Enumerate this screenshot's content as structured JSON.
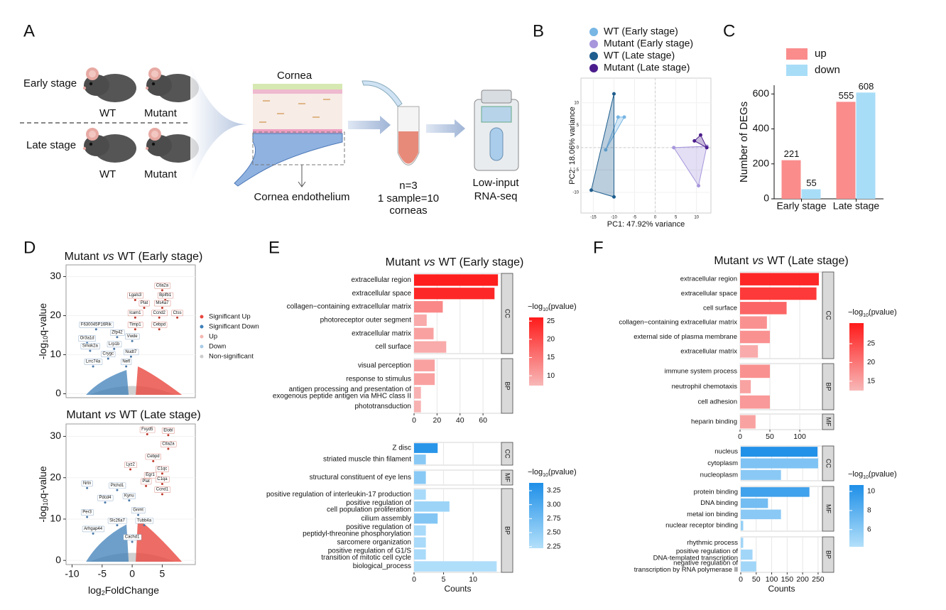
{
  "panel_labels": [
    "A",
    "B",
    "C",
    "D",
    "E",
    "F"
  ],
  "schematic": {
    "stages": [
      "Early stage",
      "Late stage"
    ],
    "genotypes": [
      "WT",
      "Mutant"
    ],
    "tissue": "Cornea",
    "cell_layer": "Cornea endothelium",
    "sample_lines": [
      "n=3",
      "1 sample=10",
      "corneas"
    ],
    "method_lines": [
      "Low-input",
      "RNA-seq"
    ]
  },
  "chart_data": [
    {
      "type": "scatter",
      "xlabel": "PC1: 47.92% variance",
      "ylabel": "PC2: 18.06% variance",
      "xlim": [
        -18,
        13.5
      ],
      "ylim": [
        -14.6,
        15.5
      ],
      "xticks": [
        -15,
        -10,
        -5,
        0,
        5,
        10
      ],
      "yticks": [
        -10,
        -5,
        0,
        5,
        10
      ],
      "series": [
        {
          "name": "WT (Early stage)",
          "color": "#78b6e4",
          "x": [
            -12,
            -9,
            -7.5
          ],
          "y": [
            -0.5,
            6.8,
            6.8
          ]
        },
        {
          "name": "Mutant (Early stage)",
          "color": "#a796dc",
          "x": [
            4.5,
            12.5,
            10.5
          ],
          "y": [
            0,
            0.3,
            -8.5
          ]
        },
        {
          "name": "WT (Late stage)",
          "color": "#1f5e8e",
          "x": [
            -10,
            -15.5,
            -10
          ],
          "y": [
            12,
            -9.5,
            -11
          ]
        },
        {
          "name": "Mutant (Late stage)",
          "color": "#4b1d8c",
          "x": [
            9.5,
            11,
            12.5
          ],
          "y": [
            1.5,
            2.8,
            0
          ]
        }
      ]
    },
    {
      "type": "bar",
      "ylabel": "Number of DEGs",
      "categories": [
        "Early stage",
        "Late stage"
      ],
      "ylim": [
        0,
        650
      ],
      "yticks": [
        0,
        200,
        400,
        600
      ],
      "series": [
        {
          "name": "up",
          "color": "#fa8c8c",
          "values": [
            221,
            555
          ]
        },
        {
          "name": "down",
          "color": "#a8ddf7",
          "values": [
            55,
            608
          ]
        }
      ]
    },
    {
      "type": "volcano",
      "title": [
        "Mutant",
        "vs",
        "WT (Early stage)"
      ],
      "ylabel": [
        "-log",
        "10",
        "q-value"
      ],
      "xlim": [
        -11,
        10.5
      ],
      "ylim": [
        -1,
        33
      ],
      "yticks": [
        0,
        10,
        20,
        30
      ],
      "legend": {
        "names": [
          "Significant Up",
          "Significant Down",
          "Up",
          "Down",
          "Non-significant"
        ],
        "colors": [
          "#e8473f",
          "#3d7fb8",
          "#f4b6b0",
          "#a9cbe6",
          "#cccccc"
        ]
      },
      "labeled_up": {
        "color": "#c0392b",
        "labels": [
          "Ctla2a",
          "Bpifb1",
          "Lgals3",
          "Ms4a7",
          "Plat",
          "Ctss",
          "Ccnd2",
          "Icam1",
          "Timp1",
          "Cebpd"
        ],
        "x": [
          5,
          5.5,
          0.5,
          5,
          2,
          7.5,
          4.5,
          0.5,
          0.5,
          4.5
        ],
        "y": [
          26.5,
          24,
          24,
          22,
          22,
          19.5,
          19.5,
          19.5,
          16.5,
          16.5
        ]
      },
      "labeled_down": {
        "color": "#4a78a8",
        "labels": [
          "F630045P16Rik",
          "Zfp42",
          "Or3a1d",
          "Vwde",
          "Smok2a",
          "Lrp1b",
          "Nudt7",
          "Crygc",
          "Lrrc74a",
          "Nefl"
        ],
        "x": [
          -6,
          -2.5,
          -7.5,
          0,
          -7,
          -3,
          -0.2,
          -4,
          -6.5,
          -1
        ],
        "y": [
          16.5,
          14.5,
          13,
          13.5,
          11,
          11.5,
          9.5,
          9,
          7,
          7
        ]
      }
    },
    {
      "type": "volcano",
      "title": [
        "Mutant",
        "vs",
        "WT (Late stage)"
      ],
      "ylabel": [
        "-log",
        "10",
        "q-value"
      ],
      "xlabel": [
        "log",
        "2",
        "FoldChange"
      ],
      "xlim": [
        -11,
        10.5
      ],
      "ylim": [
        -1,
        33
      ],
      "xticks": [
        -10,
        -5,
        0,
        5
      ],
      "yticks": [
        0,
        10,
        20,
        30
      ],
      "labeled_up": {
        "color": "#c0392b",
        "labels": [
          "Fxyd5",
          "Elobl",
          "Ctla2a",
          "Cebpd",
          "Lyz2",
          "C1qc",
          "Egr1",
          "C1qa",
          "Plat",
          "Ccnd1"
        ],
        "x": [
          2.5,
          6,
          6,
          3.5,
          -0.3,
          5,
          3,
          5,
          2.3,
          5
        ],
        "y": [
          30.5,
          30.3,
          27,
          24,
          22,
          21,
          19.5,
          18.5,
          18,
          16
        ]
      },
      "labeled_down": {
        "color": "#4a78a8",
        "labels": [
          "Nrtn",
          "Ptchd1",
          "Pdcd4",
          "Kynu",
          "Per3",
          "Gnmt",
          "Slc26a7",
          "Tubb4a",
          "Arhgap44",
          "Cachd1"
        ],
        "x": [
          -7.5,
          -2.5,
          -4.5,
          -0.5,
          -7.5,
          1,
          -2.5,
          2,
          -6.5,
          0
        ],
        "y": [
          17.5,
          17,
          14,
          14.5,
          10.5,
          11,
          8.5,
          8.5,
          6.5,
          4.5
        ]
      }
    },
    {
      "type": "bar",
      "orientation": "horizontal",
      "title": [
        "Mutant",
        "vs",
        "WT (Early stage)"
      ],
      "xlim": [
        0,
        76
      ],
      "xticks": [
        0,
        20,
        40,
        60
      ],
      "colorbar": {
        "title": [
          "−log",
          "10",
          "(pvalue)"
        ],
        "range": [
          7.3,
          26
        ],
        "ticks": [
          10,
          15,
          20,
          25
        ],
        "colors": [
          "#f8b8b8",
          "#ff1a1a"
        ]
      },
      "facets": [
        {
          "name": "CC",
          "terms": [
            [
              "extracellular region"
            ],
            [
              "extracellular space"
            ],
            [
              "collagen−containing extracellular matrix"
            ],
            [
              "photoreceptor outer segment"
            ],
            [
              "extracellular matrix"
            ],
            [
              "cell surface"
            ]
          ],
          "values": [
            73,
            70,
            25,
            11,
            17,
            28
          ],
          "pvalues": [
            25.5,
            24.5,
            13,
            9,
            10,
            9
          ]
        },
        {
          "name": "BP",
          "terms": [
            [
              "visual perception"
            ],
            [
              "response to stimulus"
            ],
            [
              "antigen processing and presentation of",
              "exogenous peptide antigen via MHC class II"
            ],
            [
              "phototransduction"
            ]
          ],
          "values": [
            18,
            18,
            6,
            6
          ],
          "pvalues": [
            10,
            10,
            8,
            8
          ]
        }
      ]
    },
    {
      "type": "bar",
      "orientation": "horizontal",
      "xlabel": "Counts",
      "xlim": [
        0,
        14.8
      ],
      "xticks": [
        0,
        5,
        10
      ],
      "colorbar": {
        "title": [
          "−log",
          "10",
          "(pvalue)"
        ],
        "range": [
          2.22,
          3.39
        ],
        "ticks": [
          2.25,
          {
            "value": 2.5,
            "label": "2.50"
          },
          2.75,
          {
            "value": 3,
            "label": "3.00"
          },
          3.25
        ],
        "colors": [
          "#b3e0fa",
          "#1e8fe8"
        ]
      },
      "facets": [
        {
          "name": "CC",
          "terms": [
            [
              "Z disc"
            ],
            [
              "striated muscle thin filament"
            ]
          ],
          "values": [
            4,
            2
          ],
          "pvalues": [
            3.3,
            2.55
          ]
        },
        {
          "name": "MF",
          "terms": [
            [
              "structural constituent of eye lens"
            ]
          ],
          "values": [
            2
          ],
          "pvalues": [
            2.55
          ]
        },
        {
          "name": "BP",
          "terms": [
            [
              "positive regulation of interleukin-17 production"
            ],
            [
              "positive regulation of",
              "cell population proliferation"
            ],
            [
              "cilium assembly"
            ],
            [
              "positive regulation of",
              "peptidyl-threonine phosphorylation"
            ],
            [
              "sarcomere organization"
            ],
            [
              "positive regulation of G1/S",
              "transition of mitotic cell cycle"
            ],
            [
              "biological_process"
            ]
          ],
          "values": [
            2,
            6,
            4,
            2,
            2,
            2,
            14
          ],
          "pvalues": [
            2.3,
            2.4,
            2.6,
            2.3,
            2.3,
            2.3,
            2.25
          ]
        }
      ]
    },
    {
      "type": "bar",
      "orientation": "horizontal",
      "title": [
        "Mutant",
        "vs",
        "WT (Late stage)"
      ],
      "xlim": [
        0,
        138
      ],
      "xticks": [
        0,
        50,
        100
      ],
      "colorbar": {
        "title": [
          "−log",
          "10",
          "(pvalue)"
        ],
        "range": [
          12.5,
          30.5
        ],
        "ticks": [
          15,
          20,
          25
        ],
        "colors": [
          "#f8b8b8",
          "#ff1a1a"
        ]
      },
      "facets": [
        {
          "name": "CC",
          "terms": [
            [
              "extracellular region"
            ],
            [
              "extracellular space"
            ],
            [
              "cell surface"
            ],
            [
              "collagen−containing extracellular matrix"
            ],
            [
              "external side of plasma membrane"
            ],
            [
              "extracellular matrix"
            ]
          ],
          "values": [
            132,
            128,
            78,
            45,
            50,
            30
          ],
          "pvalues": [
            29,
            27,
            22,
            17,
            17,
            14
          ]
        },
        {
          "name": "BP",
          "terms": [
            [
              "immune system process"
            ],
            [
              "neutrophil chemotaxis"
            ],
            [
              "cell adhesion"
            ]
          ],
          "values": [
            50,
            18,
            50
          ],
          "pvalues": [
            17,
            15,
            16
          ]
        },
        {
          "name": "MF",
          "terms": [
            [
              "heparin binding"
            ]
          ],
          "values": [
            26
          ],
          "pvalues": [
            15
          ]
        }
      ]
    },
    {
      "type": "bar",
      "orientation": "horizontal",
      "xlabel": "Counts",
      "xlim": [
        0,
        264
      ],
      "xticks": [
        0,
        50,
        100,
        150,
        200,
        250
      ],
      "colorbar": {
        "title": [
          "−log",
          "10",
          "(pvalue)"
        ],
        "range": [
          4.2,
          10.67
        ],
        "ticks": [
          6,
          8,
          10
        ],
        "colors": [
          "#b3e0fa",
          "#1e8fe8"
        ]
      },
      "facets": [
        {
          "name": "CC",
          "terms": [
            [
              "nucleus"
            ],
            [
              "cytoplasm"
            ],
            [
              "nucleoplasm"
            ]
          ],
          "values": [
            248,
            250,
            130
          ],
          "pvalues": [
            10.5,
            6.5,
            6
          ]
        },
        {
          "name": "MF",
          "terms": [
            [
              "protein binding"
            ],
            [
              "DNA binding"
            ],
            [
              "metal ion binding"
            ],
            [
              "nuclear receptor binding"
            ]
          ],
          "values": [
            222,
            88,
            130,
            8
          ],
          "pvalues": [
            9.2,
            7,
            6,
            5.5
          ]
        },
        {
          "name": "BP",
          "terms": [
            [
              "rhythmic process"
            ],
            [
              "positive regulation of",
              "DNA-templated transcription"
            ],
            [
              "negative regulation of",
              "transcription by RNA polymerase II"
            ]
          ],
          "values": [
            8,
            38,
            50
          ],
          "pvalues": [
            5,
            5,
            5
          ]
        }
      ]
    }
  ]
}
